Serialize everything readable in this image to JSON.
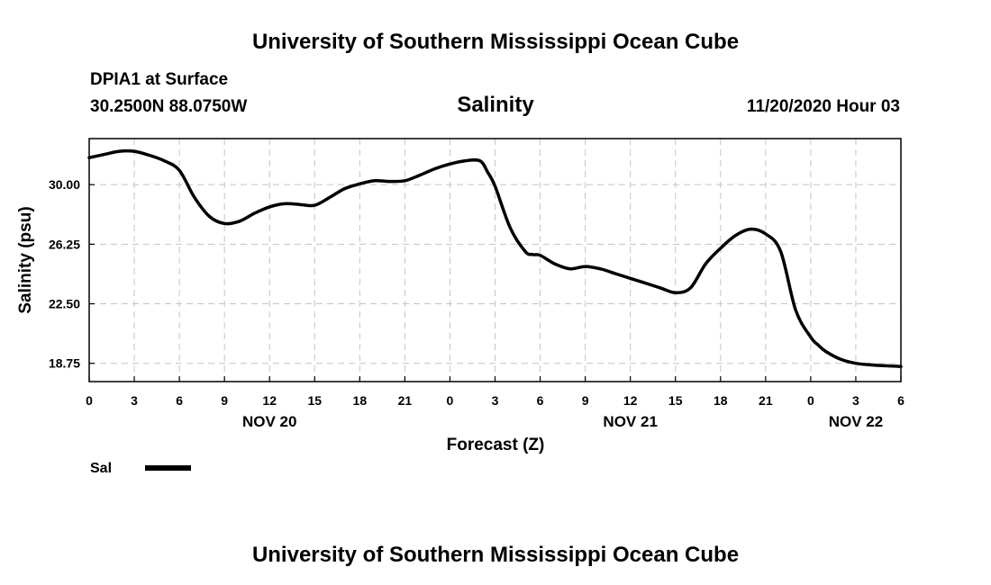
{
  "header": {
    "top_title": "University of Southern Mississippi Ocean Cube",
    "station": "DPIA1 at Surface",
    "coords": "30.2500N 88.0750W",
    "center_title": "Salinity",
    "timestamp": "11/20/2020 Hour 03",
    "bottom_title": "University of Southern Mississippi Ocean Cube"
  },
  "legend": {
    "label": "Sal"
  },
  "chart_data": {
    "type": "line",
    "title": "Salinity",
    "xlabel": "Forecast (Z)",
    "ylabel": "Salinity (psu)",
    "xlim": [
      0,
      54
    ],
    "ylim": [
      17.6,
      32.9
    ],
    "yticks": [
      30.0,
      26.25,
      22.5,
      18.75
    ],
    "ytick_labels": [
      "30.00",
      "26.25",
      "22.50",
      "18.75"
    ],
    "xticks": [
      0,
      3,
      6,
      9,
      12,
      15,
      18,
      21,
      24,
      27,
      30,
      33,
      36,
      39,
      42,
      45,
      48,
      51,
      54
    ],
    "xtick_labels": [
      "0",
      "3",
      "6",
      "9",
      "12",
      "15",
      "18",
      "21",
      "0",
      "3",
      "6",
      "9",
      "12",
      "15",
      "18",
      "21",
      "0",
      "3",
      "6"
    ],
    "date_labels": [
      {
        "hour": 12,
        "label": "NOV 20"
      },
      {
        "hour": 36,
        "label": "NOV 21"
      },
      {
        "hour": 51,
        "label": "NOV 22"
      }
    ],
    "grid": true,
    "series": [
      {
        "name": "Sal",
        "color": "#000000",
        "x": [
          0,
          1,
          2,
          3,
          4,
          5,
          6,
          7,
          8,
          9,
          10,
          11,
          12,
          13,
          14,
          15,
          16,
          17,
          18,
          19,
          20,
          21,
          22,
          23,
          24,
          25,
          26,
          26.5,
          27,
          28,
          29,
          29.5,
          30,
          31,
          32,
          33,
          34,
          35,
          36,
          37,
          38,
          39,
          40,
          41,
          42,
          43,
          44,
          45,
          46,
          47,
          48,
          48.5,
          49,
          50,
          51,
          52,
          53,
          54
        ],
        "y": [
          31.7,
          31.9,
          32.1,
          32.1,
          31.85,
          31.5,
          30.9,
          29.2,
          28.0,
          27.55,
          27.7,
          28.2,
          28.6,
          28.8,
          28.75,
          28.7,
          29.2,
          29.75,
          30.05,
          30.25,
          30.2,
          30.25,
          30.6,
          31.0,
          31.3,
          31.5,
          31.5,
          30.8,
          29.9,
          27.3,
          25.8,
          25.6,
          25.55,
          25.0,
          24.7,
          24.85,
          24.7,
          24.4,
          24.1,
          23.8,
          23.5,
          23.2,
          23.5,
          25.0,
          26.0,
          26.8,
          27.2,
          26.9,
          25.8,
          22.1,
          20.4,
          19.9,
          19.5,
          19.0,
          18.75,
          18.65,
          18.6,
          18.55
        ]
      }
    ]
  }
}
